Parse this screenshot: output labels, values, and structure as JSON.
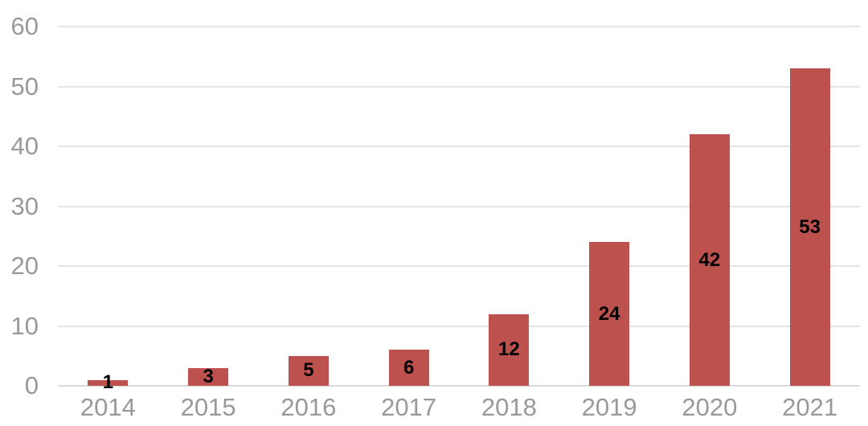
{
  "chart_data": {
    "type": "bar",
    "title": "",
    "xlabel": "",
    "ylabel": "",
    "categories": [
      "2014",
      "2015",
      "2016",
      "2017",
      "2018",
      "2019",
      "2020",
      "2021"
    ],
    "values": [
      1,
      3,
      5,
      6,
      12,
      24,
      42,
      53
    ],
    "ylim": [
      0,
      60
    ],
    "yticks": [
      0,
      10,
      20,
      30,
      40,
      50,
      60
    ],
    "grid": true,
    "legend": false,
    "value_labels_shown": true,
    "colors": {
      "bar": "#BC514E",
      "value_label": "#000000",
      "axis_text": "#999999",
      "gridline": "#E4E4E4",
      "baseline": "#D9D9D9",
      "background": "#FFFFFF"
    }
  }
}
